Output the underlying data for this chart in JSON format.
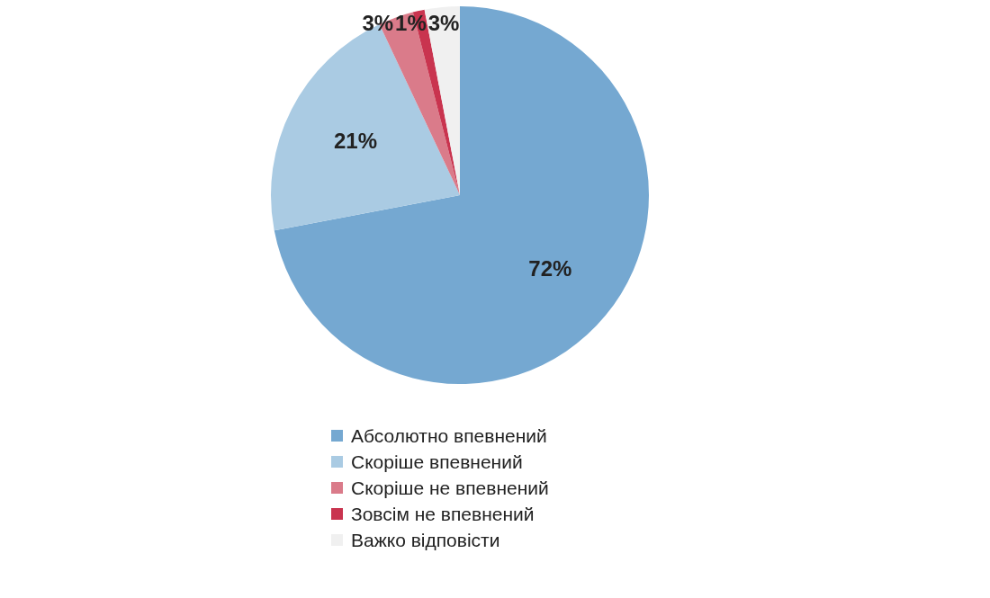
{
  "chart_data": {
    "type": "pie",
    "categories": [
      "Абсолютно впевнений",
      "Скоріше впевнений",
      "Скоріше не впевнений",
      "Зовсім не впевнений",
      "Важко відповісти"
    ],
    "values": [
      72,
      21,
      3,
      1,
      3
    ],
    "colors": [
      "#75a8d1",
      "#aacbe3",
      "#da7b8a",
      "#c9344f",
      "#f0f0f0"
    ],
    "value_labels": [
      "72%",
      "21%",
      "3%",
      "1%",
      "3%"
    ],
    "legend": "bottom"
  }
}
